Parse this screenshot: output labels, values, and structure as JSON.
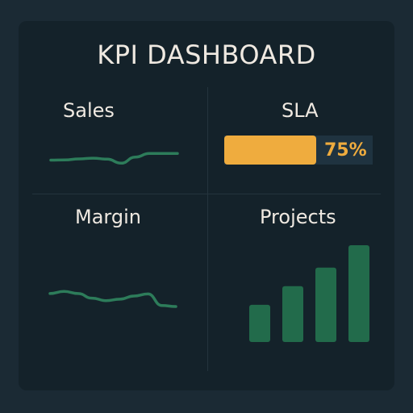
{
  "dashboard": {
    "title": "KPI DASHBOARD"
  },
  "widgets": {
    "sales": {
      "label": "Sales",
      "type": "sparkline",
      "values": [
        0.3,
        0.32,
        0.4,
        0.46,
        0.38,
        0.05,
        0.55,
        0.85,
        0.85,
        0.85
      ],
      "color": "#2d7c5a"
    },
    "sla": {
      "label": "SLA",
      "type": "progress",
      "progress_percent": 75,
      "value_text": "75%",
      "bar_color": "#efac3e",
      "track_color": "#1f3340"
    },
    "margin": {
      "label": "Margin",
      "type": "sparkline",
      "values": [
        0.62,
        0.72,
        0.62,
        0.4,
        0.28,
        0.35,
        0.5,
        0.6,
        0.05,
        0.0
      ],
      "color": "#2d7c5a"
    },
    "projects": {
      "label": "Projects",
      "type": "bar",
      "values": [
        2,
        3,
        4,
        5.2
      ],
      "color": "#226b4b"
    }
  },
  "colors": {
    "background": "#1b2a34",
    "panel": "#14222a",
    "divider": "#24343d",
    "text": "#efe9e1"
  }
}
